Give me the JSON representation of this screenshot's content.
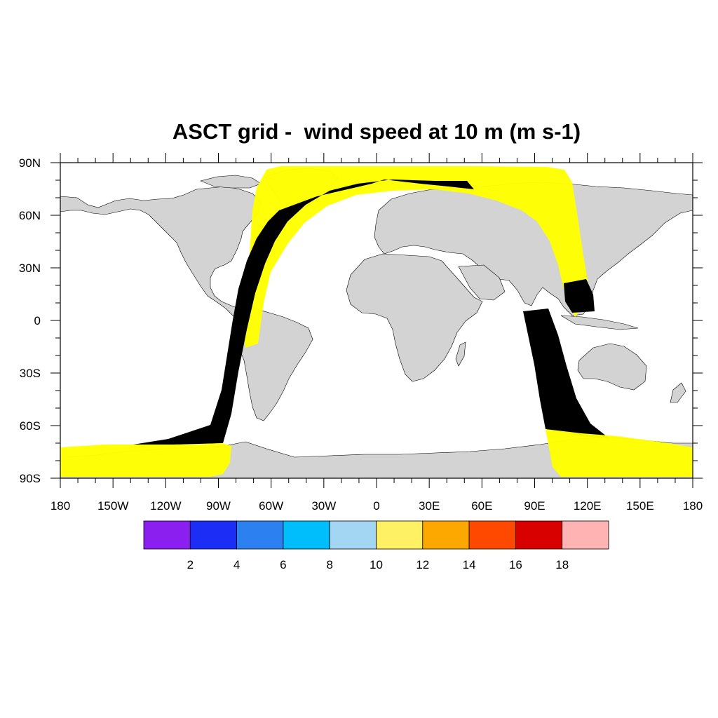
{
  "title": "ASCT grid -  wind speed at 10 m (m s-1)",
  "map": {
    "projection": "cylindrical-equidistant",
    "lon_range": [
      -180,
      180
    ],
    "lat_range": [
      -90,
      90
    ],
    "ocean_color": "#ffffff",
    "land_color": "#d3d3d3",
    "coastline_color": "#000000",
    "lat_ticks": [
      {
        "value": 90,
        "label": "90N"
      },
      {
        "value": 60,
        "label": "60N"
      },
      {
        "value": 30,
        "label": "30N"
      },
      {
        "value": 0,
        "label": "0"
      },
      {
        "value": -30,
        "label": "30S"
      },
      {
        "value": -60,
        "label": "60S"
      },
      {
        "value": -90,
        "label": "90S"
      }
    ],
    "lon_ticks": [
      {
        "value": -180,
        "label": "180"
      },
      {
        "value": -150,
        "label": "150W"
      },
      {
        "value": -120,
        "label": "120W"
      },
      {
        "value": -90,
        "label": "90W"
      },
      {
        "value": -60,
        "label": "60W"
      },
      {
        "value": -30,
        "label": "30W"
      },
      {
        "value": 0,
        "label": "0"
      },
      {
        "value": 30,
        "label": "30E"
      },
      {
        "value": 60,
        "label": "60E"
      },
      {
        "value": 90,
        "label": "90E"
      },
      {
        "value": 120,
        "label": "120E"
      },
      {
        "value": 150,
        "label": "150E"
      },
      {
        "value": 180,
        "label": "180"
      }
    ],
    "swath_high_lat_color": "#ffff00",
    "swath_low_lat_color": "#000000"
  },
  "colorbar": {
    "colors": [
      "#8a1ff0",
      "#1c2ef5",
      "#2d80ef",
      "#00bdfb",
      "#a3d6f3",
      "#fff163",
      "#fda800",
      "#ff4900",
      "#d90100",
      "#ffb3b3"
    ],
    "labels": [
      "2",
      "4",
      "6",
      "8",
      "10",
      "12",
      "14",
      "16",
      "18"
    ]
  }
}
